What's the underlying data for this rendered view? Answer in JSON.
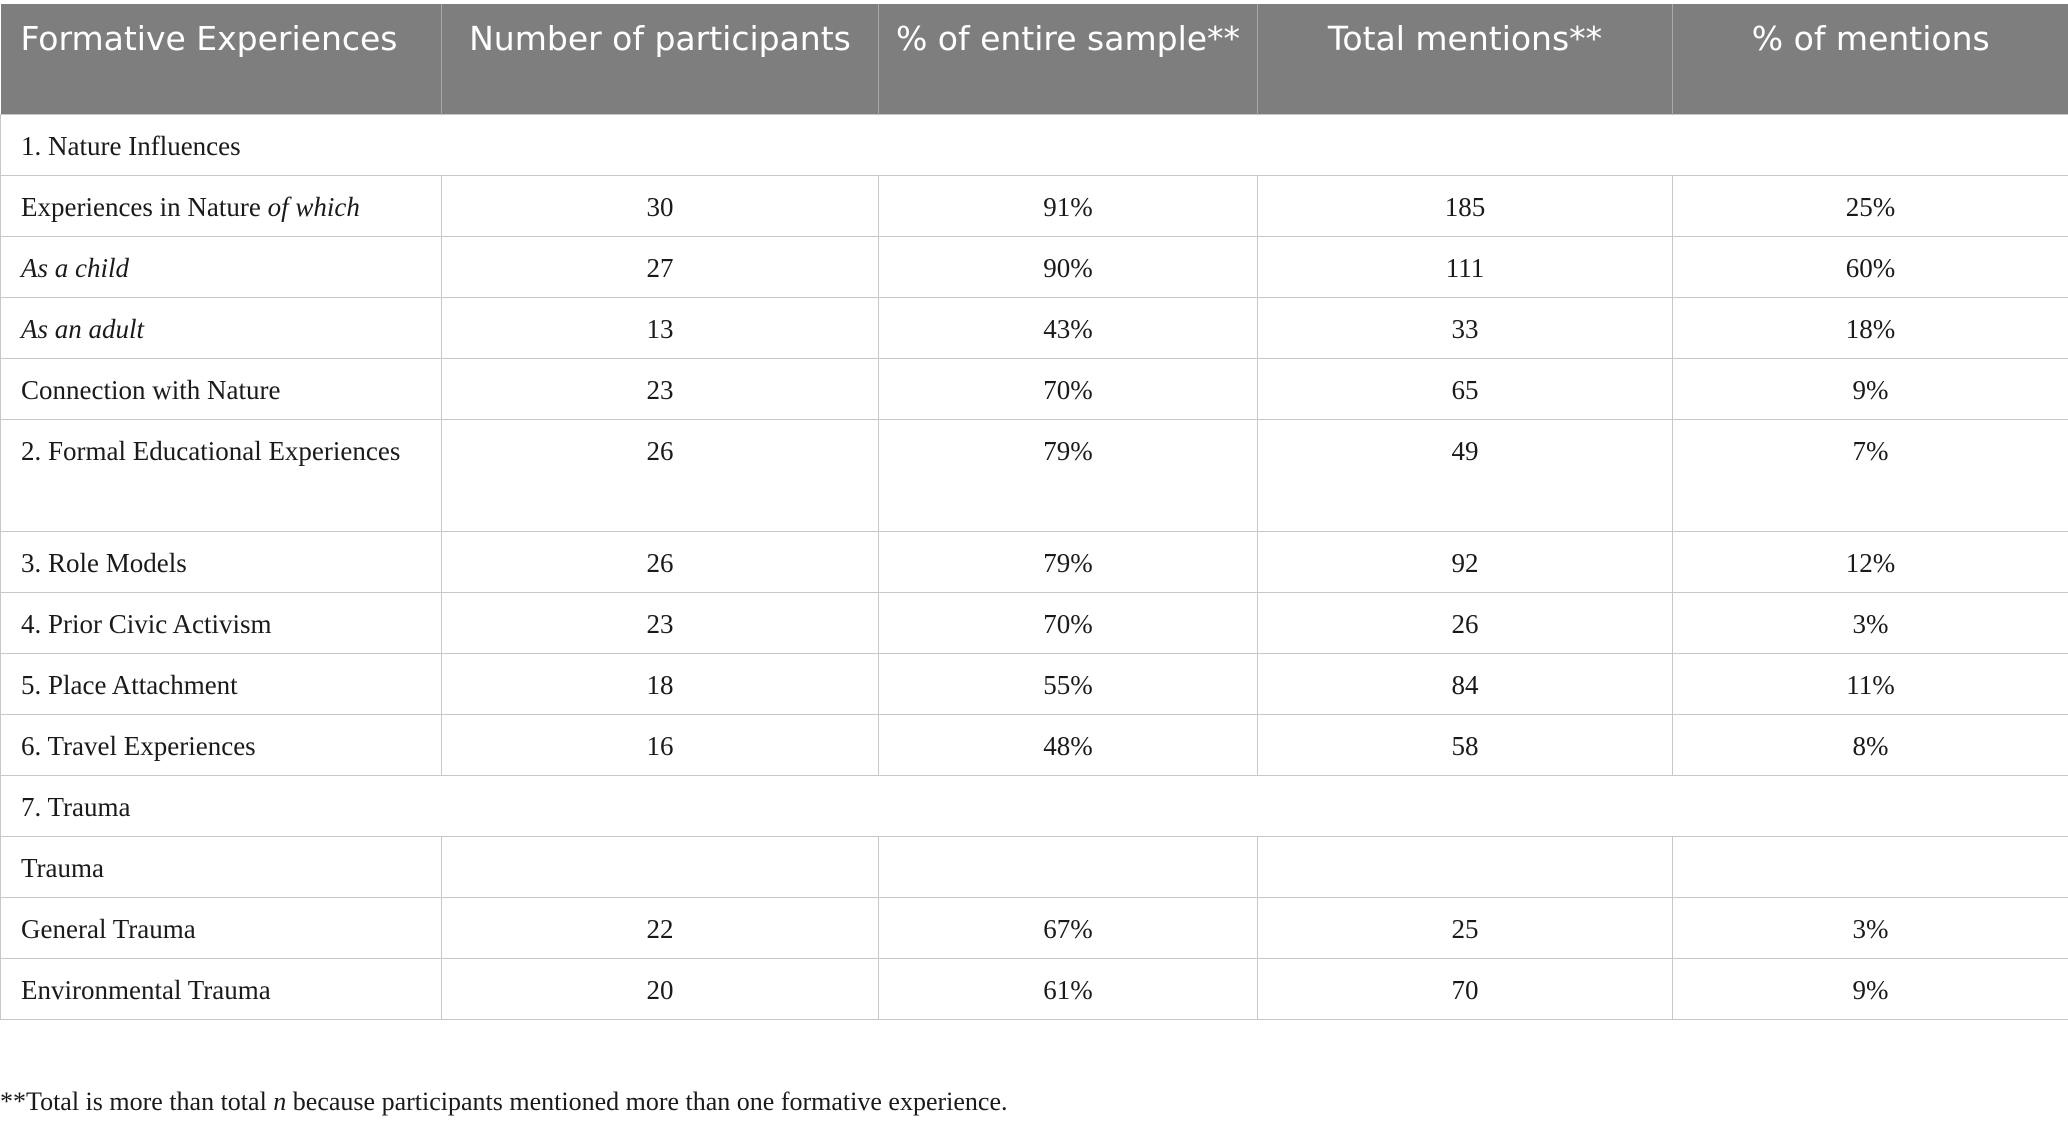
{
  "table": {
    "headers": [
      "Formative Experiences",
      "Number of participants",
      "% of entire sample**",
      "Total mentions**",
      "% of mentions"
    ],
    "rows": [
      {
        "section": "1. Nature Influences"
      },
      {
        "label": "Experiences in Nature",
        "label_italic_suffix": "of which",
        "cells": [
          "30",
          "91%",
          "185",
          "25%"
        ]
      },
      {
        "label_italic": "As a child",
        "cells": [
          "27",
          "90%",
          "111",
          "60%"
        ]
      },
      {
        "label_italic": "As an adult",
        "cells": [
          "13",
          "43%",
          "33",
          "18%"
        ]
      },
      {
        "label": "Connection with Nature",
        "cells": [
          "23",
          "70%",
          "65",
          "9%"
        ]
      },
      {
        "label": "2. Formal Educational Experiences",
        "cells": [
          "26",
          "79%",
          "49",
          "7%"
        ],
        "tall": true
      },
      {
        "label": "3. Role Models",
        "cells": [
          "26",
          "79%",
          "92",
          "12%"
        ]
      },
      {
        "label": "4. Prior Civic Activism",
        "cells": [
          "23",
          "70%",
          "26",
          "3%"
        ]
      },
      {
        "label": "5. Place Attachment",
        "cells": [
          "18",
          "55%",
          "84",
          "11%"
        ]
      },
      {
        "label": "6. Travel Experiences",
        "cells": [
          "16",
          "48%",
          "58",
          "8%"
        ]
      },
      {
        "section": "7. Trauma"
      },
      {
        "label": "Trauma",
        "cells": [
          "",
          "",
          "",
          ""
        ]
      },
      {
        "label": "General Trauma",
        "cells": [
          "22",
          "67%",
          "25",
          "3%"
        ]
      },
      {
        "label": "Environmental Trauma",
        "cells": [
          "20",
          "61%",
          "70",
          "9%"
        ]
      }
    ]
  },
  "footnote": {
    "prefix": "**Total is more than total ",
    "italic": "n",
    "suffix": " because participants mentioned more than one formative experience."
  }
}
